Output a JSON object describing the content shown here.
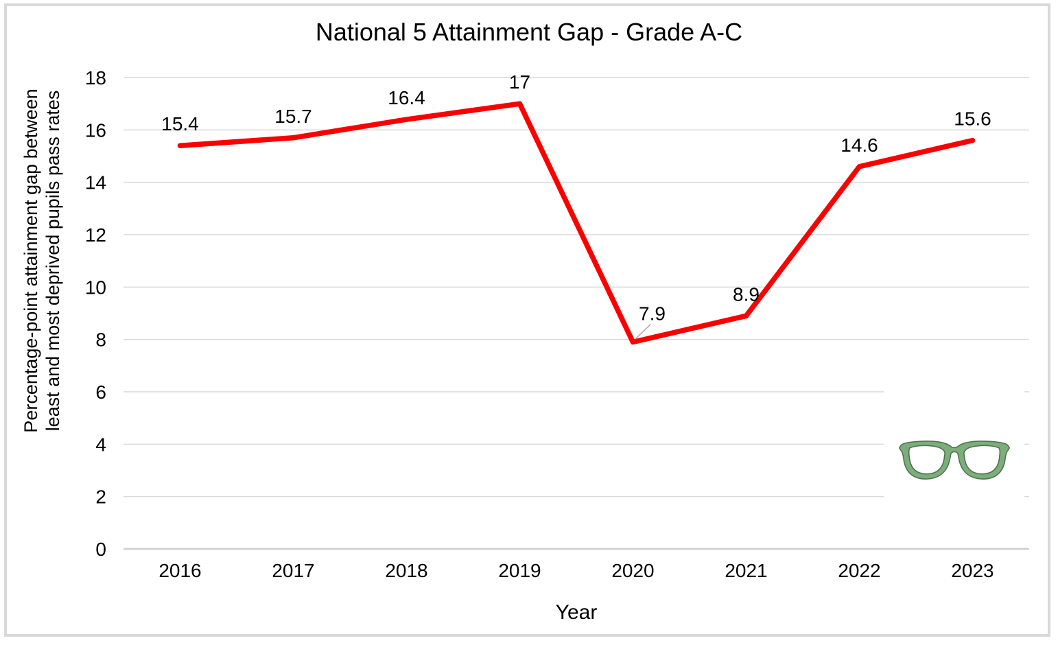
{
  "chart_data": {
    "type": "line",
    "title": "National 5 Attainment Gap - Grade A-C",
    "xlabel": "Year",
    "ylabel": "Percentage-point attainment gap between least and most deprived pupils pass rates",
    "categories": [
      "2016",
      "2017",
      "2018",
      "2019",
      "2020",
      "2021",
      "2022",
      "2023"
    ],
    "values": [
      15.4,
      15.7,
      16.4,
      17,
      7.9,
      8.9,
      14.6,
      15.6
    ],
    "data_labels": [
      "15.4",
      "15.7",
      "16.4",
      "17",
      "7.9",
      "8.9",
      "14.6",
      "15.6"
    ],
    "ylim": [
      0,
      18
    ],
    "yticks": [
      0,
      2,
      4,
      6,
      8,
      10,
      12,
      14,
      16,
      18
    ],
    "grid": true,
    "legend": "none",
    "line_color": "#fb0000",
    "grid_color": "#d9d9d9",
    "axis_color": "#cfcfcf",
    "leader_line_color": "#a6a6a6",
    "text_color": "#000000"
  },
  "icons": {
    "glasses": {
      "label": "glasses-logo",
      "frame_color": "#7bae7a",
      "outline_color": "#4e7250"
    }
  },
  "frame": {
    "border_color": "#d9d9d9"
  }
}
